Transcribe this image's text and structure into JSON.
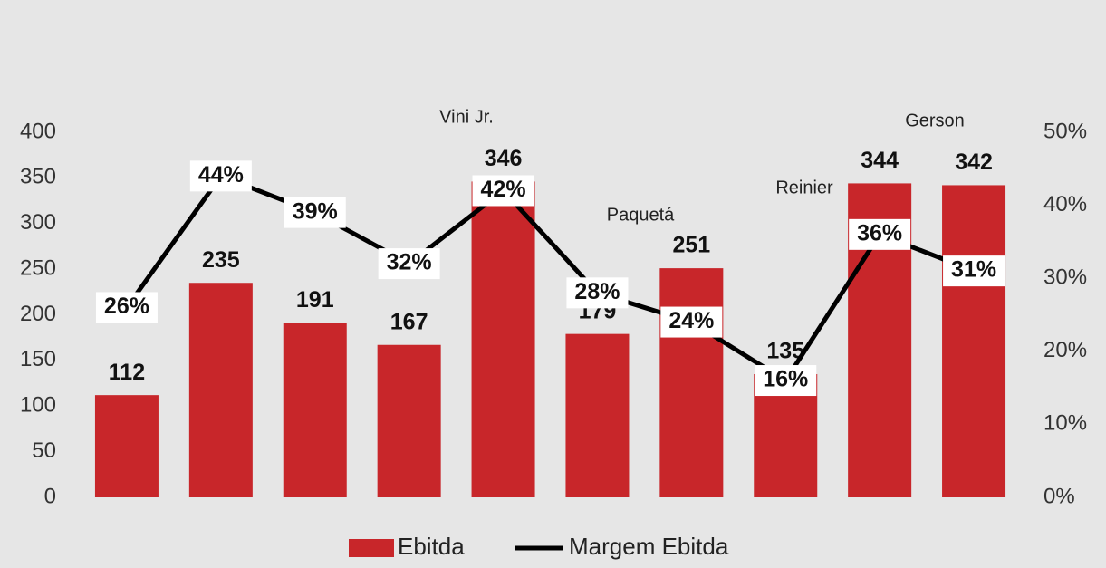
{
  "chart_data": {
    "type": "bar",
    "categories": [
      null,
      null,
      null,
      null,
      null,
      null,
      null,
      null,
      null,
      null
    ],
    "series": [
      {
        "name": "Ebitda",
        "type": "bar",
        "color": "#c8262a",
        "values": [
          112,
          235,
          191,
          167,
          346,
          179,
          251,
          135,
          344,
          342
        ]
      },
      {
        "name": "Margem Ebitda",
        "type": "line",
        "axis": "y2",
        "color": "#000000",
        "values": [
          26,
          44,
          39,
          32,
          42,
          28,
          24,
          16,
          36,
          31
        ],
        "value_labels": [
          "26%",
          "44%",
          "39%",
          "32%",
          "42%",
          "28%",
          "24%",
          "16%",
          "36%",
          "31%"
        ]
      }
    ],
    "ylim": [
      0,
      400
    ],
    "yticks": [
      0,
      50,
      100,
      150,
      200,
      250,
      300,
      350,
      400
    ],
    "y2lim": [
      0,
      50
    ],
    "y2ticks": [
      {
        "value": 0,
        "label": "0%"
      },
      {
        "value": 10,
        "label": "10%"
      },
      {
        "value": 20,
        "label": "20%"
      },
      {
        "value": 30,
        "label": "30%"
      },
      {
        "value": 40,
        "label": "40%"
      },
      {
        "value": 50,
        "label": "50%"
      }
    ],
    "annotations": [
      "Vini Jr.",
      "Paquetá",
      "Reinier",
      "Gerson"
    ],
    "legend": "bottom"
  }
}
